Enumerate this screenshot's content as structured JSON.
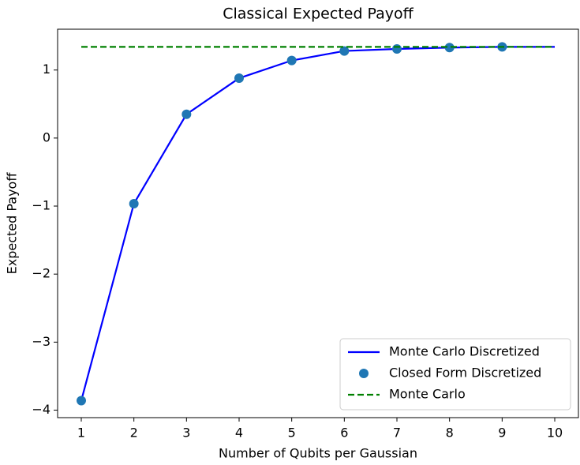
{
  "chart_data": {
    "type": "line",
    "title": "Classical Expected Payoff",
    "x_label": "Number of Qubits per Gaussian",
    "y_label": "Expected Payoff",
    "xlim": [
      0.55,
      10.45
    ],
    "ylim": [
      -4.11,
      1.6
    ],
    "xticks": [
      1,
      2,
      3,
      4,
      5,
      6,
      7,
      8,
      9,
      10
    ],
    "yticks": [
      {
        "value": -4,
        "label": "−4"
      },
      {
        "value": -3,
        "label": "−3"
      },
      {
        "value": -2,
        "label": "−2"
      },
      {
        "value": -1,
        "label": "−1"
      },
      0,
      1
    ],
    "legend": "lower right",
    "series": [
      {
        "name": "Monte Carlo Discretized",
        "style": "line",
        "color": "#0000ff",
        "x": [
          1,
          2,
          3,
          4,
          5,
          6,
          7,
          8,
          9,
          10
        ],
        "values": [
          -3.86,
          -0.965,
          0.35,
          0.88,
          1.14,
          1.28,
          1.31,
          1.33,
          1.34,
          1.34
        ]
      },
      {
        "name": "Closed Form Discretized",
        "style": "marker",
        "color": "#1f77b4",
        "x": [
          1,
          2,
          3,
          4,
          5,
          6,
          7,
          8,
          9
        ],
        "values": [
          -3.86,
          -0.965,
          0.35,
          0.88,
          1.14,
          1.28,
          1.31,
          1.33,
          1.34
        ]
      },
      {
        "name": "Monte Carlo",
        "style": "dashed",
        "color": "#008000",
        "x": [
          1,
          10
        ],
        "values": [
          1.34,
          1.34
        ]
      }
    ]
  }
}
